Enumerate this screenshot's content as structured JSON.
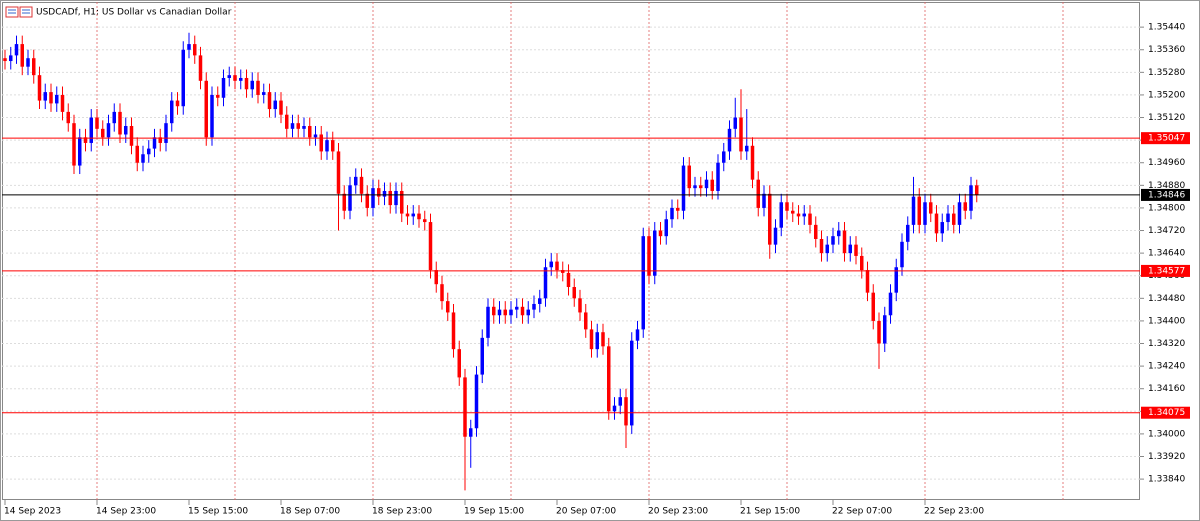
{
  "chart_data": {
    "type": "candlestick",
    "title": "USDCADf, H1:  US Dollar vs Canadian Dollar",
    "up_color": "#0000ff",
    "down_color": "#ff0000",
    "grid": true,
    "categories": [
      "14 Sep 2023",
      null,
      null,
      null,
      null,
      null,
      null,
      null,
      null,
      null,
      null,
      null,
      null,
      null,
      null,
      null,
      "14 Sep 23:00",
      null,
      null,
      null,
      null,
      null,
      null,
      null,
      null,
      null,
      null,
      null,
      null,
      null,
      null,
      null,
      "15 Sep 15:00",
      null,
      null,
      null,
      null,
      null,
      null,
      null,
      null,
      null,
      null,
      null,
      null,
      null,
      null,
      null,
      "18 Sep 07:00",
      null,
      null,
      null,
      null,
      null,
      null,
      null,
      null,
      null,
      null,
      null,
      null,
      null,
      null,
      null,
      "18 Sep 23:00",
      null,
      null,
      null,
      null,
      null,
      null,
      null,
      null,
      null,
      null,
      null,
      null,
      null,
      null,
      null,
      "19 Sep 15:00",
      null,
      null,
      null,
      null,
      null,
      null,
      null,
      null,
      null,
      null,
      null,
      null,
      null,
      null,
      null,
      "20 Sep 07:00",
      null,
      null,
      null,
      null,
      null,
      null,
      null,
      null,
      null,
      null,
      null,
      null,
      null,
      null,
      null,
      "20 Sep 23:00",
      null,
      null,
      null,
      null,
      null,
      null,
      null,
      null,
      null,
      null,
      null,
      null,
      null,
      null,
      null,
      "21 Sep 15:00",
      null,
      null,
      null,
      null,
      null,
      null,
      null,
      null,
      null,
      null,
      null,
      null,
      null,
      null,
      null,
      "22 Sep 07:00",
      null,
      null,
      null,
      null,
      null,
      null,
      null,
      null,
      null,
      null,
      null,
      null,
      null,
      null,
      null,
      "22 Sep 23:00",
      null,
      null,
      null,
      null,
      null,
      null,
      null,
      null,
      null
    ],
    "open": [
      1.3533,
      1.3532,
      1.3534,
      1.3538,
      1.353,
      1.3533,
      1.3527,
      1.3518,
      1.3521,
      1.3517,
      1.352,
      1.3514,
      1.351,
      1.3495,
      1.3505,
      1.3503,
      1.3512,
      1.3508,
      1.3505,
      1.351,
      1.3514,
      1.3506,
      1.3509,
      1.3502,
      1.3496,
      1.3499,
      1.3501,
      1.3505,
      1.3503,
      1.351,
      1.3518,
      1.3516,
      1.3536,
      1.3538,
      1.3534,
      1.3525,
      1.3505,
      1.352,
      1.3519,
      1.3526,
      1.3527,
      1.3525,
      1.3526,
      1.3522,
      1.3525,
      1.352,
      1.3521,
      1.3515,
      1.3518,
      1.3513,
      1.3508,
      1.351,
      1.3508,
      1.3509,
      1.3505,
      1.3506,
      1.35,
      1.3504,
      1.35,
      1.3485,
      1.3479,
      1.3488,
      1.3491,
      1.3485,
      1.348,
      1.3487,
      1.3484,
      1.3486,
      1.3481,
      1.3486,
      1.3478,
      1.3477,
      1.3478,
      1.3476,
      1.3475,
      1.3458,
      1.3453,
      1.3447,
      1.3443,
      1.343,
      1.342,
      1.3399,
      1.3402,
      1.3421,
      1.3434,
      1.3445,
      1.3442,
      1.3444,
      1.3442,
      1.3444,
      1.3445,
      1.3442,
      1.3444,
      1.3446,
      1.3448,
      1.3459,
      1.3461,
      1.3458,
      1.3457,
      1.3452,
      1.3448,
      1.3443,
      1.3437,
      1.343,
      1.3436,
      1.3431,
      1.3408,
      1.341,
      1.3413,
      1.3403,
      1.3433,
      1.3437,
      1.347,
      1.3456,
      1.3472,
      1.347,
      1.3476,
      1.348,
      1.3479,
      1.3495,
      1.3487,
      1.3488,
      1.3487,
      1.349,
      1.3486,
      1.3496,
      1.35,
      1.3508,
      1.3512,
      1.35,
      1.3502,
      1.349,
      1.348,
      1.3485,
      1.3467,
      1.3473,
      1.3482,
      1.3479,
      1.3478,
      1.3477,
      1.3478,
      1.3474,
      1.3469,
      1.3464,
      1.3467,
      1.347,
      1.3472,
      1.3464,
      1.3467,
      1.3463,
      1.3458,
      1.345,
      1.344,
      1.3432,
      1.3442,
      1.345,
      1.3459,
      1.3468,
      1.3474,
      1.3484,
      1.3474,
      1.3482,
      1.3478,
      1.3471,
      1.3475,
      1.3478,
      1.3474,
      1.3482,
      1.3479,
      1.3488
    ],
    "high": [
      1.3536,
      1.3537,
      1.3541,
      1.3541,
      1.3536,
      1.3536,
      1.353,
      1.3524,
      1.3524,
      1.3523,
      1.3523,
      1.3517,
      1.3513,
      1.3508,
      1.3508,
      1.3515,
      1.3515,
      1.3511,
      1.3513,
      1.3517,
      1.3517,
      1.3512,
      1.3512,
      1.3505,
      1.3502,
      1.3504,
      1.3508,
      1.3508,
      1.3513,
      1.3521,
      1.3521,
      1.3539,
      1.3542,
      1.3541,
      1.3537,
      1.3528,
      1.3523,
      1.3523,
      1.3529,
      1.353,
      1.353,
      1.3529,
      1.3529,
      1.3528,
      1.3528,
      1.3524,
      1.3524,
      1.3521,
      1.3521,
      1.3516,
      1.3513,
      1.3513,
      1.3512,
      1.3512,
      1.3509,
      1.3509,
      1.3507,
      1.3507,
      1.3503,
      1.3488,
      1.3491,
      1.3494,
      1.3494,
      1.3488,
      1.349,
      1.349,
      1.3489,
      1.3489,
      1.3489,
      1.3489,
      1.3481,
      1.3481,
      1.3481,
      1.3479,
      1.3478,
      1.3461,
      1.3456,
      1.345,
      1.3446,
      1.3433,
      1.3423,
      1.3405,
      1.3424,
      1.3437,
      1.3448,
      1.3448,
      1.3447,
      1.3447,
      1.3447,
      1.3448,
      1.3448,
      1.3447,
      1.3449,
      1.3451,
      1.3462,
      1.3464,
      1.3464,
      1.3461,
      1.346,
      1.3455,
      1.3451,
      1.3446,
      1.344,
      1.3439,
      1.3439,
      1.3434,
      1.3413,
      1.3416,
      1.3416,
      1.3436,
      1.344,
      1.3473,
      1.3473,
      1.3475,
      1.3475,
      1.3479,
      1.3483,
      1.3483,
      1.3498,
      1.3498,
      1.3491,
      1.3491,
      1.3493,
      1.3493,
      1.3499,
      1.3503,
      1.3511,
      1.3519,
      1.3522,
      1.3515,
      1.3505,
      1.3493,
      1.3488,
      1.3488,
      1.3476,
      1.3485,
      1.3485,
      1.3482,
      1.3481,
      1.3481,
      1.3481,
      1.3477,
      1.3472,
      1.347,
      1.3473,
      1.3475,
      1.3475,
      1.347,
      1.347,
      1.3466,
      1.3461,
      1.3453,
      1.3443,
      1.3445,
      1.3453,
      1.3462,
      1.3471,
      1.3477,
      1.3491,
      1.3487,
      1.3485,
      1.3485,
      1.3481,
      1.3478,
      1.3481,
      1.3481,
      1.3485,
      1.3485,
      1.3491,
      1.349
    ],
    "low": [
      1.3529,
      1.3529,
      1.3531,
      1.3527,
      1.3527,
      1.3524,
      1.3515,
      1.3515,
      1.3514,
      1.3514,
      1.3511,
      1.3507,
      1.3492,
      1.3492,
      1.35,
      1.35,
      1.3505,
      1.3502,
      1.3502,
      1.3507,
      1.3503,
      1.3503,
      1.3499,
      1.3493,
      1.3493,
      1.3496,
      1.3498,
      1.35,
      1.35,
      1.3507,
      1.3513,
      1.3513,
      1.3533,
      1.3531,
      1.3522,
      1.3502,
      1.3502,
      1.3516,
      1.3516,
      1.3523,
      1.3522,
      1.3522,
      1.3519,
      1.3519,
      1.3517,
      1.3517,
      1.3512,
      1.3512,
      1.351,
      1.3505,
      1.3505,
      1.3505,
      1.3505,
      1.3502,
      1.3502,
      1.3497,
      1.3497,
      1.3497,
      1.3472,
      1.3476,
      1.3476,
      1.3485,
      1.3482,
      1.3477,
      1.3477,
      1.3481,
      1.3481,
      1.3478,
      1.3478,
      1.3475,
      1.3474,
      1.3474,
      1.3473,
      1.3472,
      1.3455,
      1.345,
      1.3444,
      1.344,
      1.3427,
      1.3417,
      1.338,
      1.3388,
      1.3399,
      1.3418,
      1.3431,
      1.3439,
      1.3439,
      1.3439,
      1.3439,
      1.3441,
      1.3439,
      1.3439,
      1.3441,
      1.3443,
      1.3445,
      1.3456,
      1.3455,
      1.3454,
      1.3449,
      1.3445,
      1.344,
      1.3434,
      1.3427,
      1.3427,
      1.3428,
      1.3405,
      1.3405,
      1.3407,
      1.3395,
      1.34,
      1.343,
      1.3434,
      1.3453,
      1.3453,
      1.3467,
      1.3467,
      1.3473,
      1.3476,
      1.3476,
      1.3484,
      1.3484,
      1.3484,
      1.3484,
      1.3483,
      1.3483,
      1.3493,
      1.3497,
      1.3505,
      1.3497,
      1.3497,
      1.3487,
      1.3477,
      1.3477,
      1.3462,
      1.3464,
      1.347,
      1.3476,
      1.3475,
      1.3474,
      1.3474,
      1.3471,
      1.3466,
      1.3461,
      1.3461,
      1.3464,
      1.3467,
      1.3461,
      1.3461,
      1.346,
      1.3455,
      1.3447,
      1.3437,
      1.3423,
      1.3429,
      1.3439,
      1.3447,
      1.3456,
      1.3465,
      1.3471,
      1.3471,
      1.3471,
      1.3475,
      1.3468,
      1.3468,
      1.3472,
      1.3471,
      1.3471,
      1.3476,
      1.3476,
      1.3482
    ],
    "close": [
      1.3532,
      1.3534,
      1.3538,
      1.353,
      1.3533,
      1.3527,
      1.3518,
      1.3521,
      1.3517,
      1.352,
      1.3514,
      1.351,
      1.3495,
      1.3505,
      1.3503,
      1.3512,
      1.3508,
      1.3505,
      1.351,
      1.3514,
      1.3506,
      1.3509,
      1.3502,
      1.3496,
      1.3499,
      1.3501,
      1.3505,
      1.3503,
      1.351,
      1.3518,
      1.3516,
      1.3536,
      1.3538,
      1.3534,
      1.3525,
      1.3505,
      1.352,
      1.3519,
      1.3526,
      1.3527,
      1.3525,
      1.3526,
      1.3522,
      1.3525,
      1.352,
      1.3521,
      1.3515,
      1.3518,
      1.3513,
      1.3508,
      1.351,
      1.3508,
      1.3509,
      1.3505,
      1.3506,
      1.35,
      1.3504,
      1.35,
      1.3485,
      1.3479,
      1.3488,
      1.3491,
      1.3485,
      1.348,
      1.3487,
      1.3484,
      1.3486,
      1.3481,
      1.3486,
      1.3478,
      1.3477,
      1.3478,
      1.3476,
      1.3475,
      1.3458,
      1.3453,
      1.3447,
      1.3443,
      1.343,
      1.342,
      1.3399,
      1.3402,
      1.3421,
      1.3434,
      1.3445,
      1.3442,
      1.3444,
      1.3442,
      1.3444,
      1.3445,
      1.3442,
      1.3444,
      1.3446,
      1.3448,
      1.3459,
      1.3461,
      1.3458,
      1.3457,
      1.3452,
      1.3448,
      1.3443,
      1.3437,
      1.343,
      1.3436,
      1.3431,
      1.3408,
      1.341,
      1.3413,
      1.3403,
      1.3433,
      1.3437,
      1.347,
      1.3456,
      1.3472,
      1.347,
      1.3476,
      1.348,
      1.3479,
      1.3495,
      1.3487,
      1.3488,
      1.3487,
      1.349,
      1.3486,
      1.3496,
      1.35,
      1.3508,
      1.3512,
      1.35,
      1.3502,
      1.349,
      1.348,
      1.3485,
      1.3467,
      1.3473,
      1.3482,
      1.3479,
      1.3478,
      1.3477,
      1.3478,
      1.3474,
      1.3469,
      1.3464,
      1.3467,
      1.347,
      1.3472,
      1.3464,
      1.3467,
      1.3463,
      1.3458,
      1.345,
      1.344,
      1.3432,
      1.3442,
      1.345,
      1.3459,
      1.3468,
      1.3474,
      1.3484,
      1.3474,
      1.3482,
      1.3478,
      1.3471,
      1.3475,
      1.3478,
      1.3474,
      1.3482,
      1.3479,
      1.3488,
      1.34846
    ],
    "ylim": [
      1.33766,
      1.35529
    ],
    "yticks": [
      {
        "value": 1.3544,
        "label": "1.35440"
      },
      {
        "value": 1.3536,
        "label": "1.35360"
      },
      {
        "value": 1.3528,
        "label": "1.35280"
      },
      {
        "value": 1.352,
        "label": "1.35200"
      },
      {
        "value": 1.3512,
        "label": "1.35120"
      },
      {
        "value": 1.3504,
        "label": "1.35040"
      },
      {
        "value": 1.3496,
        "label": "1.34960"
      },
      {
        "value": 1.3488,
        "label": "1.34880"
      },
      {
        "value": 1.348,
        "label": "1.34800"
      },
      {
        "value": 1.3472,
        "label": "1.34720"
      },
      {
        "value": 1.3464,
        "label": "1.34640"
      },
      {
        "value": 1.3456,
        "label": "1.34560"
      },
      {
        "value": 1.3448,
        "label": "1.34480"
      },
      {
        "value": 1.344,
        "label": "1.34400"
      },
      {
        "value": 1.3432,
        "label": "1.34320"
      },
      {
        "value": 1.3424,
        "label": "1.34240"
      },
      {
        "value": 1.3416,
        "label": "1.34160"
      },
      {
        "value": 1.3408,
        "label": "1.34080"
      },
      {
        "value": 1.34,
        "label": "1.34000"
      },
      {
        "value": 1.3392,
        "label": "1.33920"
      },
      {
        "value": 1.3384,
        "label": "1.33840"
      }
    ],
    "levels": [
      {
        "value": 1.35047,
        "color": "#ff0000"
      },
      {
        "value": 1.34577,
        "color": "#ff0000"
      },
      {
        "value": 1.34075,
        "color": "#ff0000"
      },
      {
        "value": 1.34846,
        "color": "#000000"
      }
    ]
  }
}
